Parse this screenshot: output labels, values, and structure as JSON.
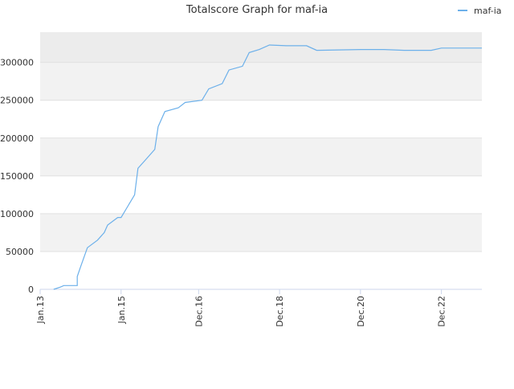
{
  "chart_data": {
    "type": "line",
    "title": "Totalscore Graph for maf-ia",
    "x": [
      "2013-05",
      "2013-07",
      "2013-08",
      "2013-12",
      "2013-12",
      "2014-01",
      "2014-03",
      "2014-06",
      "2014-08",
      "2014-09",
      "2014-12",
      "2015-01",
      "2015-03",
      "2015-05",
      "2015-06",
      "2015-08",
      "2015-11",
      "2015-12",
      "2016-02",
      "2016-06",
      "2016-08",
      "2017-01",
      "2017-03",
      "2017-07",
      "2017-09",
      "2018-01",
      "2018-03",
      "2018-06",
      "2018-09",
      "2019-02",
      "2019-08",
      "2019-11",
      "2020-12",
      "2021-07",
      "2022-01",
      "2022-09",
      "2022-12",
      "2023-12"
    ],
    "series": [
      {
        "name": "maf-ia",
        "color": "#6cb0ea",
        "values": [
          0,
          3000,
          5000,
          5000,
          17000,
          30000,
          55000,
          65000,
          75000,
          85000,
          95000,
          95000,
          110000,
          125000,
          160000,
          170000,
          185000,
          215000,
          235000,
          240000,
          247000,
          250000,
          265000,
          272000,
          290000,
          295000,
          313000,
          317000,
          323000,
          322000,
          322000,
          316000,
          317000,
          317000,
          316000,
          316000,
          319000,
          319000
        ]
      }
    ],
    "xlim": [
      "2013-01",
      "2023-12"
    ],
    "xticks": [
      {
        "value": "2013-01",
        "label": "Jan.13"
      },
      {
        "value": "2015-01",
        "label": "Jan.15"
      },
      {
        "value": "2016-12",
        "label": "Dec.16"
      },
      {
        "value": "2018-12",
        "label": "Dec.18"
      },
      {
        "value": "2020-12",
        "label": "Dec.20"
      },
      {
        "value": "2022-12",
        "label": "Dec.22"
      }
    ],
    "ylim": [
      0,
      340000
    ],
    "yticks": [
      0,
      50000,
      100000,
      150000,
      200000,
      250000,
      300000
    ],
    "grid": true,
    "legend": "top-right"
  }
}
